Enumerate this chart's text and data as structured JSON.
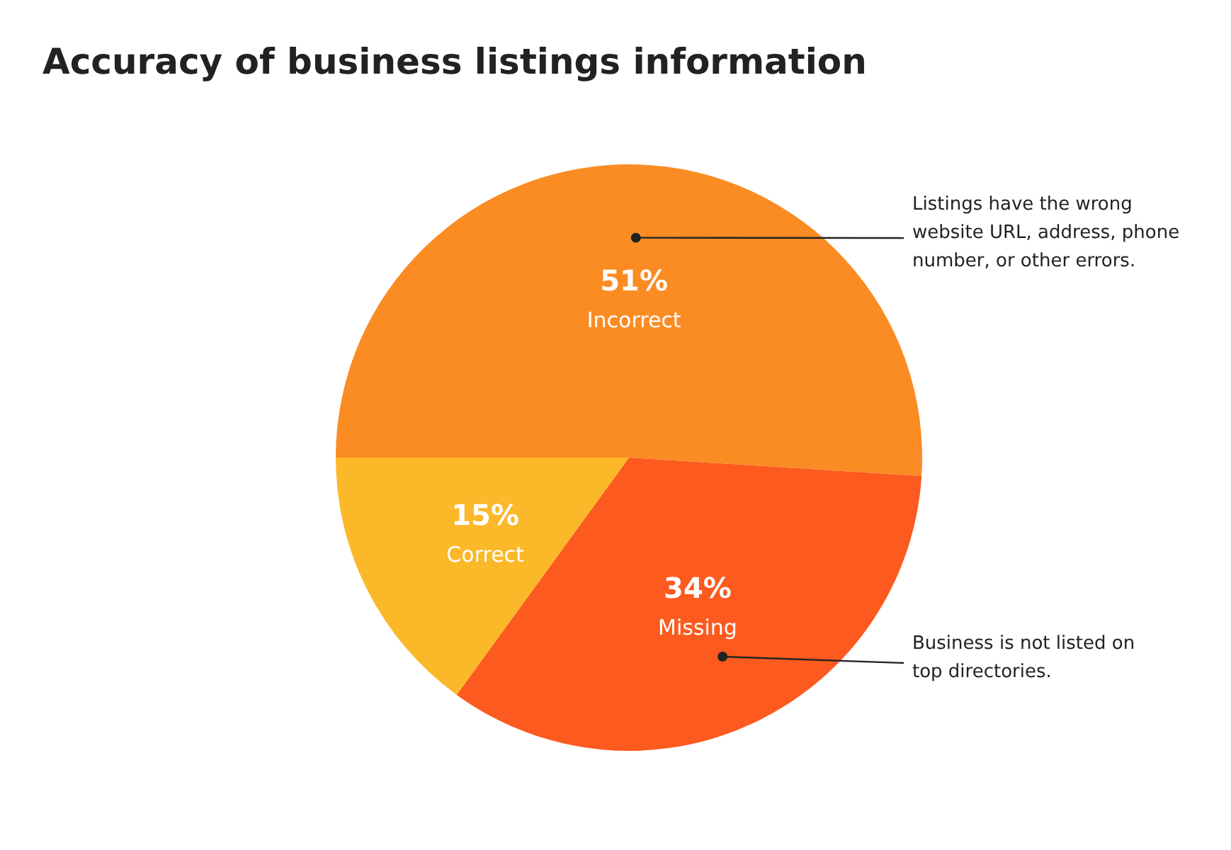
{
  "chart_data": {
    "type": "pie",
    "title": "Accuracy of business listings information",
    "categories": [
      "Incorrect",
      "Missing",
      "Correct"
    ],
    "values": [
      51,
      34,
      15
    ],
    "value_labels": [
      "51%",
      "34%",
      "15%"
    ],
    "colors": [
      "#fb8c23",
      "#fc5a1f",
      "#fbb829"
    ],
    "annotations": [
      "Listings have the wrong website URL, address, phone number, or other errors.",
      "Business is not listed on top directories."
    ]
  }
}
